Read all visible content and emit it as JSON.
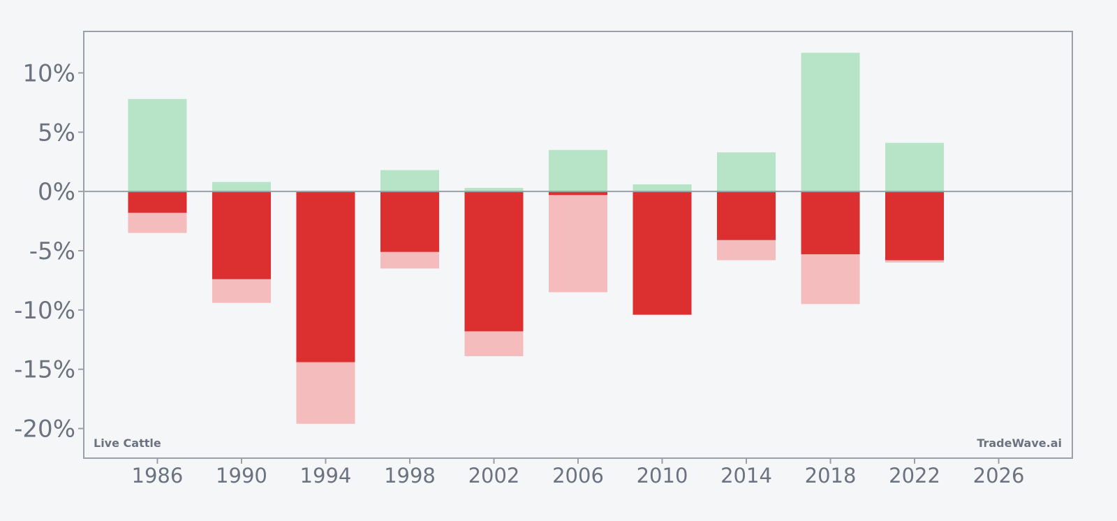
{
  "chart_data": {
    "type": "bar",
    "title": "",
    "xlabel": "",
    "ylabel": "",
    "x_ticks": [
      "1986",
      "1990",
      "1994",
      "1998",
      "2002",
      "2006",
      "2010",
      "2014",
      "2018",
      "2022",
      "2026"
    ],
    "y_ticks": [
      "10%",
      "5%",
      "0%",
      "-5%",
      "-10%",
      "-15%",
      "-20%"
    ],
    "ylim": [
      -22.5,
      13.5
    ],
    "xlim": [
      1982.5,
      2029.5
    ],
    "grid": false,
    "legend": "none",
    "categories": [
      "1986",
      "1990",
      "1994",
      "1998",
      "2002",
      "2006",
      "2010",
      "2014",
      "2018",
      "2022"
    ],
    "series": [
      {
        "values": [
          7.8,
          0.8,
          0.0,
          1.8,
          0.3,
          3.5,
          0.6,
          3.3,
          11.7,
          4.1
        ]
      },
      {
        "values": [
          -3.5,
          -9.4,
          -19.6,
          -6.5,
          -13.9,
          -8.5,
          -10.4,
          -5.8,
          -9.5,
          -6.0
        ]
      },
      {
        "values": [
          -1.8,
          -7.4,
          -14.4,
          -5.1,
          -11.8,
          -0.3,
          -10.4,
          -4.1,
          -5.3,
          -5.8
        ]
      }
    ],
    "colors": {
      "positive": "#b7e4c7",
      "negative_light": "#f4bcbc",
      "negative_dark": "#dc3030",
      "axis": "#9aa0aa",
      "text": "#6b7280",
      "background": "#f4f6f8"
    }
  },
  "labels": {
    "left": "Live Cattle",
    "right": "TradeWave.ai"
  }
}
